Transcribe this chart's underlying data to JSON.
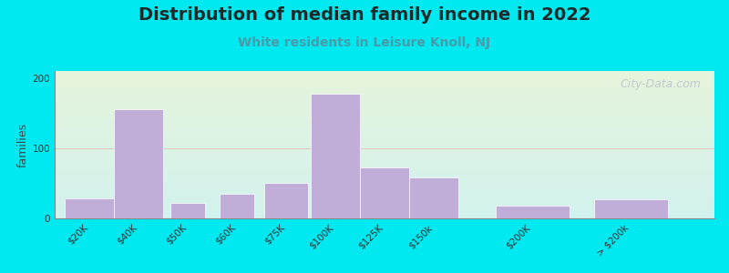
{
  "title": "Distribution of median family income in 2022",
  "subtitle": "White residents in Leisure Knoll, NJ",
  "watermark": "City-Data.com",
  "categories": [
    "$20K",
    "$40K",
    "$50K",
    "$60K",
    "$75K",
    "$100K",
    "$125K",
    "$150k",
    "$200K",
    "> $200k"
  ],
  "values": [
    28,
    155,
    22,
    35,
    50,
    178,
    72,
    58,
    18,
    27
  ],
  "bar_color": "#c0aed8",
  "bar_edge_color": "#ffffff",
  "ylabel": "families",
  "ylim": [
    0,
    210
  ],
  "yticks": [
    0,
    100,
    200
  ],
  "grid_color": "#e8a0a0",
  "grid_alpha": 0.5,
  "outer_bg_color": "#00e8f0",
  "title_fontsize": 14,
  "subtitle_fontsize": 10,
  "subtitle_color": "#4a9aaa",
  "title_fontweight": "bold",
  "watermark_color": "#b0b8c8",
  "watermark_alpha": 0.7,
  "tick_fontsize": 7.5,
  "ylabel_fontsize": 9,
  "bar_positions": [
    0,
    1,
    2,
    3,
    4,
    5,
    6,
    7,
    9,
    11
  ],
  "bar_widths": [
    1,
    1,
    0.7,
    0.7,
    0.9,
    1,
    1,
    1,
    1.5,
    1.5
  ]
}
